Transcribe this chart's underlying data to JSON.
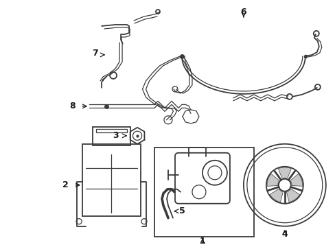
{
  "background": "#ffffff",
  "line_color": "#3a3a3a",
  "label_color": "#1a1a1a",
  "fig_width": 4.89,
  "fig_height": 3.6,
  "dpi": 100
}
